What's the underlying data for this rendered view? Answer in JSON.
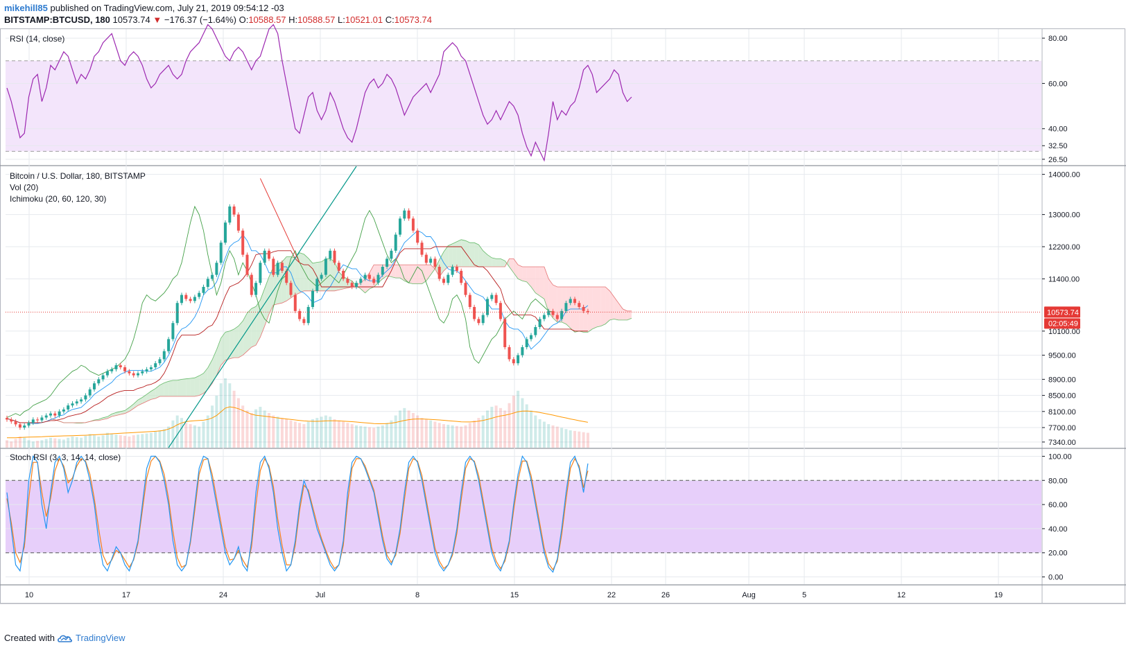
{
  "header": {
    "user": "mikehill85",
    "published_text": "published on TradingView.com, July 21, 2019 09:54:12 -03",
    "symbol": "BITSTAMP:BTCUSD, 180",
    "last": "10573.74",
    "change_arrow": "▼",
    "change": "−176.37 (−1.64%)",
    "o_label": "O:",
    "o_value": "10588.57",
    "h_label": "H:",
    "h_value": "10588.57",
    "l_label": "L:",
    "l_value": "10521.01",
    "c_label": "C:",
    "c_value": "10573.74"
  },
  "footer": {
    "created_with": "Created with",
    "brand": "TradingView"
  },
  "colors": {
    "up": "#26a69a",
    "down": "#ef5350",
    "grid": "#e6e9ee",
    "rsi_line": "#9c27b0",
    "rsi_band": "#f3e5fb",
    "stoch_band": "#e7cffa",
    "stoch_k": "#2196f3",
    "stoch_d": "#f57f17",
    "kumo_up": "#c8e6c9",
    "kumo_down": "#ffcdd2",
    "tenkan": "#2196f3",
    "kijun": "#b71c1c",
    "chikou": "#43a047",
    "trendline": "#009688",
    "price_line": "#e53935",
    "brand_blue": "#2e7bcf"
  },
  "icons": {
    "brand": "tradingview-cloud-icon",
    "down_arrow": "triangle-down-icon"
  },
  "chart_data": [
    {
      "type": "line",
      "name": "RSI (14, close)",
      "legend": [
        "RSI (14, close)"
      ],
      "ylim": [
        24,
        84
      ],
      "y_ticks": [
        "80.00",
        "60.00",
        "40.00",
        "32.50",
        "26.50"
      ],
      "y_tick_values": [
        80,
        60,
        40,
        32.5,
        26.5
      ],
      "bands": [
        30,
        70
      ],
      "values": [
        58,
        52,
        44,
        36,
        38,
        54,
        62,
        64,
        52,
        58,
        68,
        66,
        70,
        74,
        72,
        66,
        60,
        64,
        62,
        66,
        72,
        74,
        78,
        80,
        82,
        76,
        70,
        68,
        72,
        74,
        72,
        68,
        62,
        58,
        60,
        64,
        66,
        68,
        64,
        62,
        64,
        70,
        74,
        76,
        78,
        82,
        86,
        84,
        80,
        76,
        72,
        70,
        74,
        76,
        74,
        70,
        66,
        70,
        72,
        78,
        84,
        86,
        82,
        70,
        60,
        50,
        40,
        38,
        46,
        54,
        56,
        48,
        44,
        48,
        56,
        52,
        46,
        40,
        36,
        34,
        40,
        48,
        56,
        60,
        62,
        58,
        60,
        64,
        62,
        58,
        52,
        46,
        50,
        54,
        56,
        58,
        60,
        56,
        60,
        64,
        74,
        76,
        78,
        76,
        72,
        70,
        64,
        58,
        52,
        46,
        42,
        44,
        48,
        44,
        48,
        52,
        50,
        46,
        38,
        32,
        28,
        34,
        30,
        26,
        38,
        52,
        44,
        48,
        46,
        50,
        52,
        58,
        66,
        68,
        64,
        56,
        58,
        60,
        62,
        66,
        64,
        56,
        52,
        54
      ],
      "x_ticks": [
        "10",
        "17",
        "24",
        "Jul",
        "8",
        "15",
        "22",
        "26",
        "Aug",
        "5",
        "12",
        "19"
      ]
    },
    {
      "type": "candlestick",
      "name": "Bitcoin / U.S. Dollar, 180, BITSTAMP",
      "legend": [
        "Bitcoin / U.S. Dollar, 180, BITSTAMP",
        "Vol (20)",
        "Ichimoku (20, 60, 120, 30)"
      ],
      "ylim": [
        7200,
        14200
      ],
      "y_ticks": [
        "14000.00",
        "13000.00",
        "12200.00",
        "11400.00",
        "10100.00",
        "9500.00",
        "8900.00",
        "8500.00",
        "8100.00",
        "7700.00",
        "7340.00"
      ],
      "y_tick_values": [
        14000,
        13000,
        12200,
        11400,
        10100,
        9500,
        8900,
        8500,
        8100,
        7700,
        7340
      ],
      "last_price_label": "10573.74",
      "countdown_label": "02:05:49",
      "last_price": 10573.74,
      "close": [
        7900,
        7850,
        7780,
        7700,
        7750,
        7820,
        7900,
        7880,
        7950,
        8000,
        8050,
        8000,
        8100,
        8150,
        8250,
        8300,
        8350,
        8400,
        8500,
        8650,
        8800,
        8900,
        9000,
        9100,
        9150,
        9250,
        9200,
        9100,
        9050,
        9000,
        9050,
        9100,
        9150,
        9200,
        9300,
        9400,
        9600,
        9900,
        10300,
        10800,
        11000,
        10900,
        10850,
        10950,
        11050,
        11200,
        11400,
        11500,
        11800,
        12300,
        12800,
        13200,
        13000,
        12600,
        12000,
        11500,
        11000,
        11300,
        11800,
        12100,
        11900,
        11500,
        11800,
        11600,
        11300,
        11000,
        10600,
        10400,
        10300,
        10700,
        11100,
        11400,
        11500,
        11900,
        12100,
        11800,
        11600,
        11400,
        11300,
        11200,
        11300,
        11400,
        11500,
        11400,
        11300,
        11500,
        11700,
        11900,
        12100,
        12500,
        12900,
        13100,
        12900,
        12600,
        12300,
        12000,
        11800,
        11900,
        11700,
        11400,
        11300,
        11500,
        11700,
        11600,
        11300,
        11000,
        10700,
        10400,
        10300,
        10500,
        10900,
        11000,
        10800,
        10400,
        9700,
        9400,
        9300,
        9500,
        9700,
        9900,
        10000,
        10200,
        10400,
        10500,
        10600,
        10500,
        10400,
        10600,
        10800,
        10900,
        10800,
        10700,
        10600,
        10574
      ],
      "volume": [
        60,
        50,
        70,
        90,
        80,
        60,
        50,
        55,
        60,
        70,
        80,
        75,
        70,
        65,
        80,
        90,
        85,
        80,
        95,
        110,
        100,
        90,
        100,
        120,
        110,
        105,
        100,
        95,
        90,
        100,
        105,
        110,
        115,
        120,
        130,
        140,
        150,
        170,
        220,
        260,
        240,
        200,
        190,
        180,
        170,
        210,
        260,
        340,
        420,
        520,
        560,
        520,
        460,
        400,
        340,
        300,
        280,
        310,
        330,
        300,
        280,
        260,
        250,
        240,
        230,
        220,
        210,
        200,
        190,
        210,
        230,
        240,
        250,
        260,
        250,
        230,
        220,
        210,
        200,
        190,
        180,
        175,
        170,
        165,
        160,
        170,
        180,
        200,
        220,
        260,
        300,
        320,
        300,
        280,
        260,
        240,
        230,
        220,
        210,
        200,
        190,
        185,
        180,
        175,
        170,
        180,
        200,
        220,
        240,
        260,
        300,
        330,
        340,
        320,
        300,
        360,
        420,
        460,
        400,
        350,
        300,
        260,
        230,
        210,
        190,
        180,
        170,
        160,
        150,
        140,
        135,
        130,
        125,
        120
      ],
      "vol_ma": [
        80,
        80,
        80,
        82,
        84,
        85,
        86,
        87,
        88,
        90,
        92,
        93,
        94,
        95,
        96,
        97,
        98,
        99,
        100,
        102,
        104,
        106,
        108,
        110,
        112,
        114,
        116,
        118,
        120,
        122,
        124,
        126,
        128,
        130,
        132,
        135,
        140,
        150,
        165,
        185,
        200,
        210,
        215,
        218,
        220,
        222,
        228,
        240,
        260,
        290,
        320,
        330,
        325,
        315,
        300,
        285,
        270,
        262,
        258,
        254,
        250,
        245,
        240,
        236,
        232,
        228,
        224,
        220,
        216,
        214,
        213,
        213,
        214,
        216,
        217,
        217,
        216,
        214,
        212,
        210,
        207,
        204,
        201,
        198,
        195,
        193,
        193,
        195,
        198,
        204,
        212,
        220,
        226,
        230,
        232,
        232,
        230,
        228,
        226,
        224,
        221,
        218,
        215,
        212,
        209,
        208,
        208,
        210,
        214,
        220,
        228,
        238,
        248,
        256,
        262,
        270,
        280,
        290,
        295,
        296,
        294,
        290,
        284,
        277,
        270,
        263,
        255,
        247,
        240,
        232,
        225,
        218,
        211,
        205
      ]
    },
    {
      "type": "line",
      "name": "Stoch RSI (3, 3, 14, 14, close)",
      "legend": [
        "Stoch RSI (3, 3, 14, 14, close)"
      ],
      "ylim": [
        -6,
        106
      ],
      "y_ticks": [
        "100.00",
        "80.00",
        "60.00",
        "40.00",
        "20.00",
        "0.00"
      ],
      "y_tick_values": [
        100,
        80,
        60,
        40,
        20,
        0
      ],
      "bands": [
        20,
        80
      ],
      "series": [
        {
          "name": "K",
          "values": [
            70,
            40,
            10,
            5,
            30,
            80,
            100,
            95,
            60,
            40,
            70,
            95,
            100,
            90,
            70,
            80,
            95,
            100,
            95,
            80,
            60,
            30,
            10,
            5,
            15,
            25,
            20,
            10,
            5,
            15,
            30,
            60,
            90,
            100,
            100,
            95,
            80,
            60,
            30,
            10,
            5,
            10,
            30,
            60,
            90,
            100,
            98,
            80,
            60,
            40,
            20,
            10,
            15,
            25,
            10,
            5,
            30,
            70,
            95,
            100,
            90,
            70,
            40,
            20,
            5,
            10,
            30,
            60,
            80,
            70,
            55,
            40,
            30,
            20,
            10,
            5,
            10,
            30,
            70,
            95,
            100,
            98,
            90,
            80,
            70,
            50,
            30,
            15,
            10,
            20,
            40,
            70,
            95,
            100,
            95,
            80,
            60,
            40,
            20,
            10,
            5,
            10,
            20,
            40,
            70,
            95,
            100,
            95,
            80,
            60,
            40,
            20,
            10,
            5,
            15,
            30,
            60,
            85,
            100,
            95,
            80,
            60,
            40,
            20,
            8,
            4,
            15,
            40,
            70,
            95,
            100,
            90,
            70,
            94
          ]
        },
        {
          "name": "D",
          "values": [
            65,
            45,
            20,
            12,
            25,
            65,
            95,
            95,
            70,
            50,
            65,
            88,
            98,
            92,
            78,
            82,
            92,
            98,
            96,
            85,
            65,
            40,
            18,
            10,
            14,
            22,
            20,
            14,
            8,
            14,
            28,
            55,
            82,
            96,
            100,
            96,
            85,
            65,
            38,
            16,
            8,
            10,
            28,
            55,
            85,
            97,
            98,
            85,
            65,
            45,
            25,
            14,
            15,
            22,
            14,
            8,
            25,
            60,
            88,
            98,
            92,
            75,
            48,
            26,
            10,
            10,
            26,
            55,
            76,
            72,
            58,
            44,
            32,
            22,
            13,
            7,
            10,
            26,
            62,
            90,
            98,
            98,
            92,
            82,
            72,
            54,
            34,
            18,
            12,
            18,
            36,
            64,
            90,
            98,
            96,
            84,
            64,
            44,
            24,
            13,
            7,
            10,
            18,
            36,
            64,
            90,
            98,
            96,
            84,
            64,
            44,
            24,
            13,
            7,
            13,
            28,
            55,
            80,
            96,
            96,
            84,
            64,
            44,
            24,
            11,
            6,
            13,
            35,
            64,
            90,
            98,
            92,
            74,
            88
          ]
        }
      ]
    }
  ]
}
